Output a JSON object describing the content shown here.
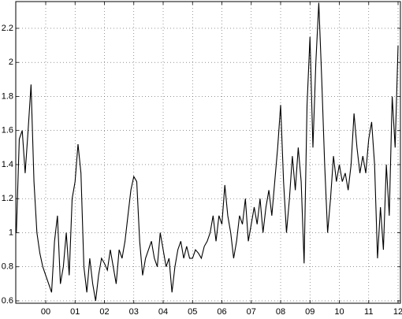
{
  "chart_data": {
    "type": "line",
    "x": [
      -1.0,
      -0.9,
      -0.8,
      -0.7,
      -0.6,
      -0.5,
      -0.4,
      -0.3,
      -0.2,
      -0.1,
      0.0,
      0.1,
      0.2,
      0.3,
      0.4,
      0.5,
      0.6,
      0.7,
      0.8,
      0.9,
      1.0,
      1.1,
      1.2,
      1.3,
      1.4,
      1.5,
      1.6,
      1.7,
      1.8,
      1.9,
      2.0,
      2.1,
      2.2,
      2.3,
      2.4,
      2.5,
      2.6,
      2.7,
      2.8,
      2.9,
      3.0,
      3.1,
      3.2,
      3.3,
      3.4,
      3.5,
      3.6,
      3.7,
      3.8,
      3.9,
      4.0,
      4.1,
      4.2,
      4.3,
      4.4,
      4.5,
      4.6,
      4.7,
      4.8,
      4.9,
      5.0,
      5.1,
      5.2,
      5.3,
      5.4,
      5.5,
      5.6,
      5.7,
      5.8,
      5.9,
      6.0,
      6.1,
      6.2,
      6.3,
      6.4,
      6.5,
      6.6,
      6.7,
      6.8,
      6.9,
      7.0,
      7.1,
      7.2,
      7.3,
      7.4,
      7.5,
      7.6,
      7.7,
      7.8,
      7.9,
      8.0,
      8.1,
      8.2,
      8.3,
      8.4,
      8.5,
      8.6,
      8.7,
      8.8,
      8.9,
      9.0,
      9.1,
      9.2,
      9.3,
      9.4,
      9.5,
      9.6,
      9.7,
      9.8,
      9.9,
      10.0,
      10.1,
      10.2,
      10.3,
      10.4,
      10.5,
      10.6,
      10.7,
      10.8,
      10.9,
      11.0,
      11.1,
      11.2,
      11.3,
      11.4,
      11.5,
      11.6,
      11.7,
      11.8,
      11.9,
      12.0
    ],
    "series": [
      {
        "color": "#000000",
        "values": [
          1.0,
          1.55,
          1.6,
          1.35,
          1.6,
          1.87,
          1.3,
          1.0,
          0.88,
          0.8,
          0.75,
          0.7,
          0.65,
          0.95,
          1.1,
          0.7,
          0.8,
          1.0,
          0.75,
          1.2,
          1.3,
          1.52,
          1.35,
          0.8,
          0.65,
          0.85,
          0.7,
          0.6,
          0.75,
          0.85,
          0.82,
          0.78,
          0.9,
          0.8,
          0.7,
          0.9,
          0.85,
          0.95,
          1.1,
          1.25,
          1.33,
          1.3,
          0.95,
          0.75,
          0.85,
          0.9,
          0.95,
          0.85,
          0.8,
          1.0,
          0.9,
          0.8,
          0.85,
          0.65,
          0.8,
          0.9,
          0.95,
          0.85,
          0.92,
          0.85,
          0.85,
          0.9,
          0.88,
          0.85,
          0.92,
          0.95,
          1.0,
          1.1,
          0.95,
          1.1,
          1.05,
          1.28,
          1.1,
          1.0,
          0.85,
          0.95,
          1.1,
          1.05,
          1.2,
          0.95,
          1.05,
          1.15,
          1.05,
          1.2,
          1.0,
          1.15,
          1.25,
          1.1,
          1.3,
          1.5,
          1.75,
          1.3,
          1.0,
          1.2,
          1.45,
          1.25,
          1.5,
          1.3,
          0.82,
          1.75,
          2.15,
          1.5,
          2.0,
          2.35,
          1.9,
          1.4,
          1.0,
          1.2,
          1.45,
          1.3,
          1.4,
          1.3,
          1.35,
          1.25,
          1.4,
          1.7,
          1.5,
          1.35,
          1.45,
          1.35,
          1.55,
          1.65,
          1.4,
          0.85,
          1.15,
          0.9,
          1.4,
          1.1,
          1.8,
          1.5,
          2.1
        ]
      }
    ],
    "xlim": [
      -1.02,
      12.08
    ],
    "ylim": [
      0.586,
      2.357
    ],
    "xticks": [
      {
        "value": 0,
        "label": "00"
      },
      {
        "value": 1,
        "label": "01"
      },
      {
        "value": 2,
        "label": "02"
      },
      {
        "value": 3,
        "label": "03"
      },
      {
        "value": 4,
        "label": "04"
      },
      {
        "value": 5,
        "label": "05"
      },
      {
        "value": 6,
        "label": "06"
      },
      {
        "value": 7,
        "label": "07"
      },
      {
        "value": 8,
        "label": "08"
      },
      {
        "value": 9,
        "label": "09"
      },
      {
        "value": 10,
        "label": "10"
      },
      {
        "value": 11,
        "label": "11"
      },
      {
        "value": 12,
        "label": "12"
      }
    ],
    "yticks": [
      0.6,
      0.8,
      1,
      1.2,
      1.4,
      1.6,
      1.8,
      2,
      2.2
    ],
    "grid": true
  }
}
